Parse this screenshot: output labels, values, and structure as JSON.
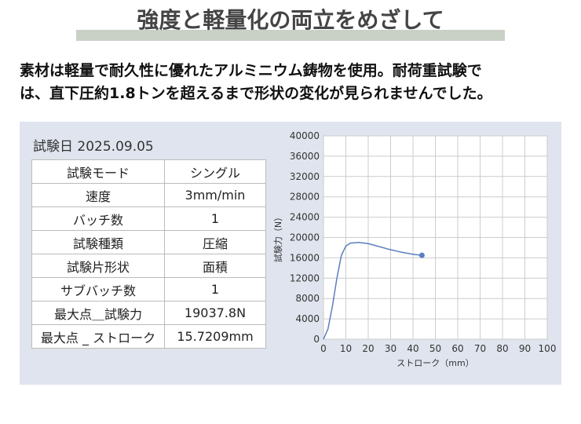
{
  "header": {
    "title": "強度と軽量化の両立をめざして"
  },
  "description": [
    "素材は軽量で耐久性に優れたアルミニウム鋳物を使用。耐荷重試験で",
    "は、直下圧約1.8トンを超えるまで形状の変化が見られませんでした。"
  ],
  "test_date": "試験日 2025.09.05",
  "table": {
    "rows": [
      [
        "試験モード",
        "シングル"
      ],
      [
        "速度",
        "3mm/min"
      ],
      [
        "バッチ数",
        "1"
      ],
      [
        "試験種類",
        "圧縮"
      ],
      [
        "試験片形状",
        "面積"
      ],
      [
        "サブバッチ数",
        "1"
      ],
      [
        "最大点＿試験力",
        "19037.8N"
      ],
      [
        "最大点 _ ストローク",
        "15.7209mm"
      ]
    ]
  },
  "chart_data": {
    "type": "line",
    "x_label": "ストローク（mm）",
    "y_label": "試験力（N）",
    "x": [
      0,
      2,
      4,
      6,
      8,
      10,
      12,
      15.7209,
      20,
      25,
      30,
      35,
      40,
      44
    ],
    "values": [
      0,
      2000,
      6500,
      12000,
      16500,
      18300,
      18900,
      19037.8,
      18800,
      18200,
      17600,
      17100,
      16700,
      16500
    ],
    "color": "#5b7fbf",
    "end_marker": true,
    "xlim": [
      0,
      100
    ],
    "xticks": [
      0,
      10,
      20,
      30,
      40,
      50,
      60,
      70,
      80,
      90,
      100
    ],
    "ylim": [
      0,
      40000
    ],
    "yticks": [
      0,
      4000,
      8000,
      12000,
      16000,
      20000,
      24000,
      28000,
      32000,
      36000,
      40000
    ],
    "grid": true
  }
}
